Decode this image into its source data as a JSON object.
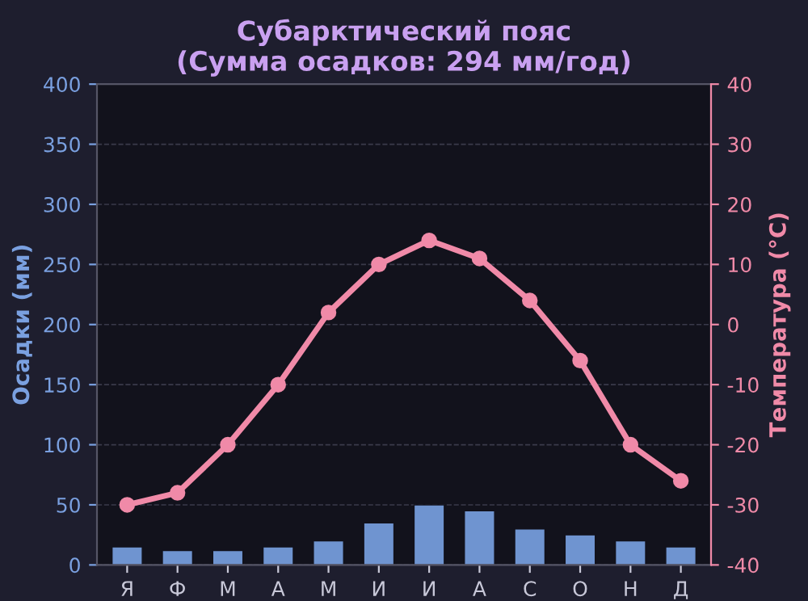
{
  "chart_data": {
    "type": "bar",
    "title": "Субарктический пояс\n(Сумма осадков: 294 мм/год)",
    "categories": [
      "Я",
      "Ф",
      "М",
      "А",
      "М",
      "И",
      "И",
      "А",
      "С",
      "О",
      "Н",
      "Д"
    ],
    "series": [
      {
        "color": "#6f94d0",
        "values": [
          15,
          12,
          12,
          15,
          20,
          35,
          50,
          45,
          30,
          25,
          20,
          15
        ]
      },
      {
        "type": "line",
        "axis": "y2",
        "color": "#f08aa8",
        "marker": "circle",
        "line_style": "solid",
        "values": [
          -30,
          -28,
          -20,
          -10,
          2,
          10,
          14,
          11,
          4,
          -6,
          -20,
          -26
        ]
      }
    ],
    "ylabel": "Осадки (мм)",
    "y2label": "Температура (°C)",
    "ylim": [
      0,
      400
    ],
    "yticks": [
      0,
      50,
      100,
      150,
      200,
      250,
      300,
      350,
      400
    ],
    "y2lim": [
      -40,
      40
    ],
    "y2ticks": [
      -40,
      -30,
      -20,
      -10,
      0,
      10,
      20,
      30,
      40
    ],
    "grid": "y"
  }
}
